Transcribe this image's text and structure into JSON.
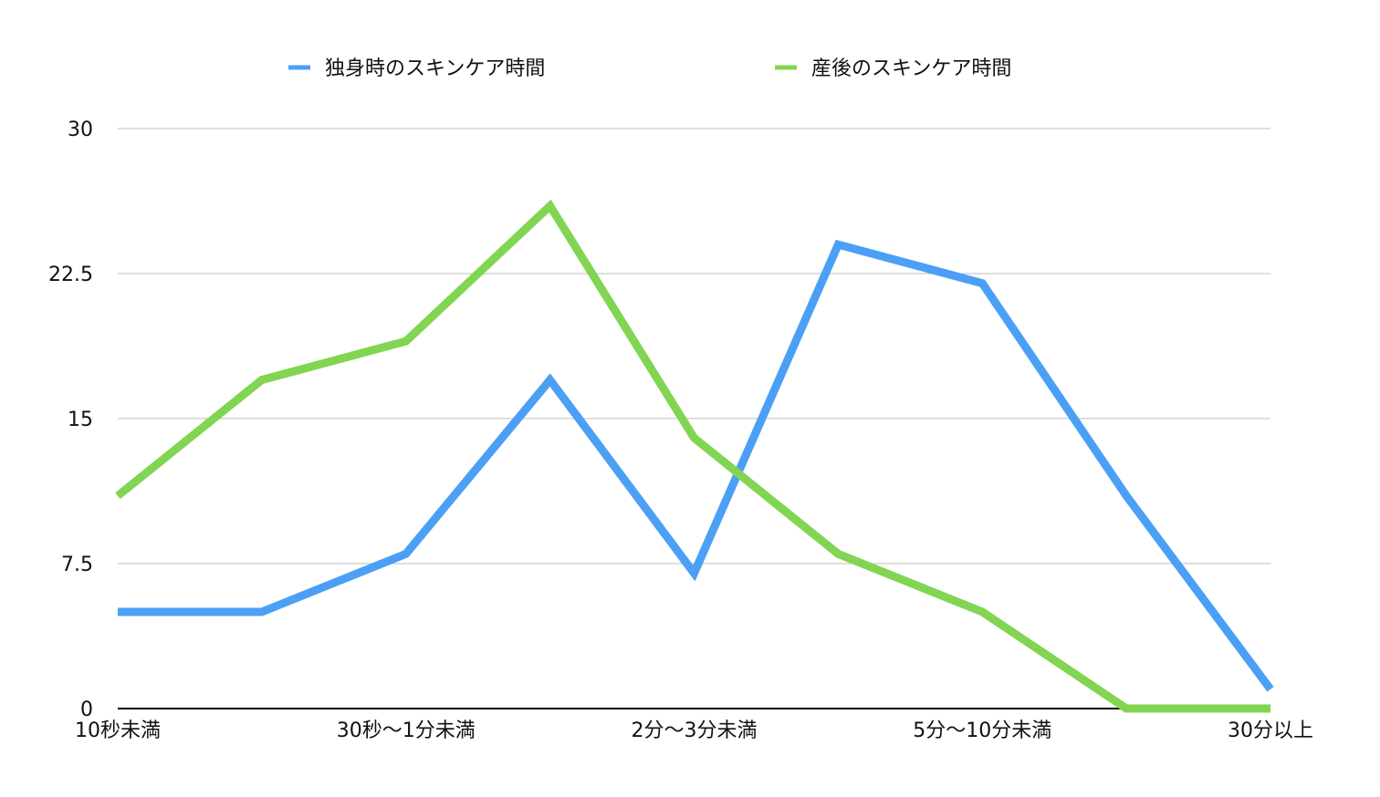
{
  "chart_data": {
    "type": "line",
    "categories": [
      "10秒未満",
      "",
      "30秒〜1分未満",
      "",
      "2分〜3分未満",
      "",
      "5分〜10分未満",
      "",
      "30分以上"
    ],
    "series": [
      {
        "name": "独身時のスキンケア時間",
        "color": "#4BA0F5",
        "values": [
          5,
          5,
          8,
          17,
          7,
          24,
          22,
          11,
          1
        ]
      },
      {
        "name": "産後のスキンケア時間",
        "color": "#82D552",
        "values": [
          11,
          17,
          19,
          26,
          14,
          8,
          5,
          0,
          0
        ]
      }
    ],
    "yticks": [
      "0",
      "7.5",
      "15",
      "22.5",
      "30"
    ],
    "ylim": [
      0,
      30
    ],
    "grid": true,
    "legend": "top"
  }
}
